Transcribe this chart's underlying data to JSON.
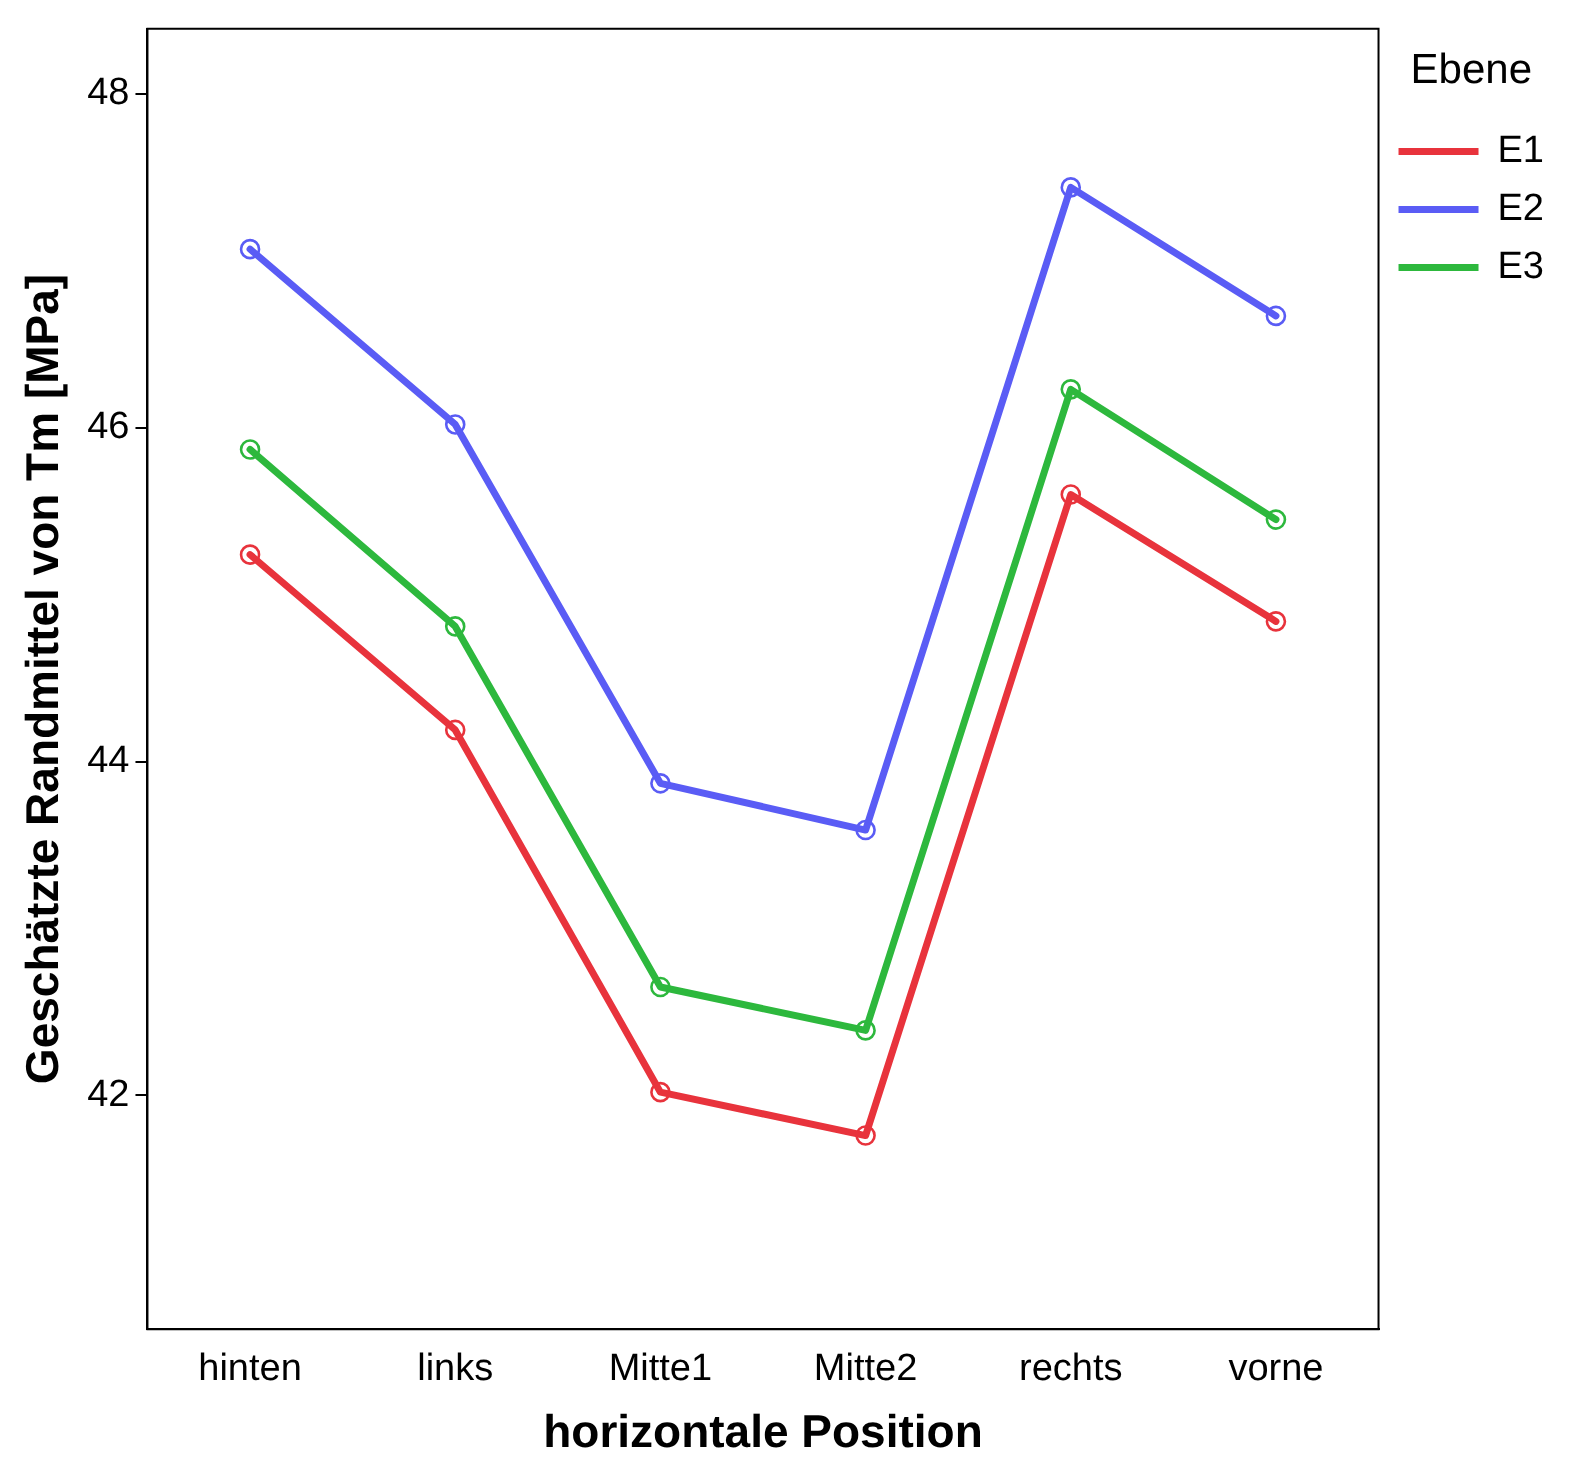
{
  "chart_data": {
    "type": "line",
    "xlabel": "horizontale Position",
    "ylabel": "Geschätzte Randmittel von Tm [MPa]",
    "legend_title": "Ebene",
    "categories": [
      "hinten",
      "links",
      "Mitte1",
      "Mitte2",
      "rechts",
      "vorne"
    ],
    "series": [
      {
        "name": "E1",
        "color": "#e8333c",
        "values": [
          45.24,
          44.19,
          42.02,
          41.76,
          45.6,
          44.84
        ]
      },
      {
        "name": "E2",
        "color": "#5a5cf5",
        "values": [
          47.07,
          46.02,
          43.87,
          43.59,
          47.44,
          46.67
        ]
      },
      {
        "name": "E3",
        "color": "#2db83d",
        "values": [
          45.87,
          44.81,
          42.65,
          42.39,
          46.23,
          45.45
        ]
      }
    ],
    "ylim": [
      40.6,
      48.39
    ],
    "yticks": [
      42,
      44,
      46,
      48
    ],
    "grid": false,
    "legend": "right",
    "marker": "circle",
    "line_style": "solid"
  }
}
